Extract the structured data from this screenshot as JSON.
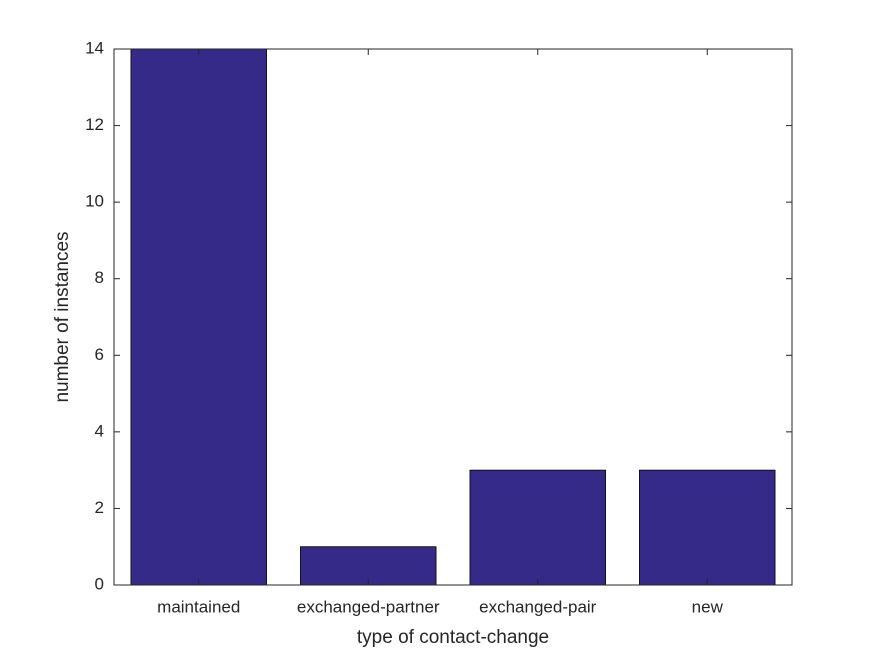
{
  "chart_data": {
    "type": "bar",
    "xlabel": "type of contact-change",
    "ylabel": "number of instances",
    "categories": [
      "maintained",
      "exchanged-partner",
      "exchanged-pair",
      "new"
    ],
    "values": [
      14,
      1,
      3,
      3
    ],
    "color": "#352a87",
    "ylim": [
      0,
      14
    ],
    "yticks": [
      0,
      2,
      4,
      6,
      8,
      10,
      12,
      14
    ],
    "grid": false
  }
}
